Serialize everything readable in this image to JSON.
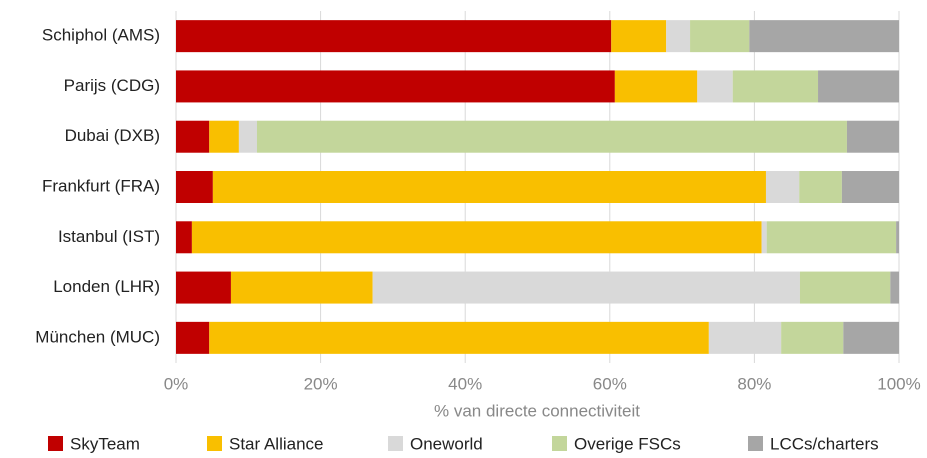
{
  "chart_data": {
    "type": "stacked-bar-horizontal",
    "x_label": "% van directe connectiviteit",
    "categories": [
      "Schiphol (AMS)",
      "Parijs (CDG)",
      "Dubai (DXB)",
      "Frankfurt (FRA)",
      "Istanbul (IST)",
      "Londen (LHR)",
      "München (MUC)"
    ],
    "series": [
      {
        "name": "SkyTeam",
        "color": "#c00000",
        "values": [
          60.2,
          60.7,
          4.6,
          5.1,
          2.2,
          7.6,
          4.6
        ]
      },
      {
        "name": "Star Alliance",
        "color": "#f9bf00",
        "values": [
          7.6,
          11.4,
          4.1,
          76.5,
          78.8,
          19.6,
          69.1
        ]
      },
      {
        "name": "Oneworld",
        "color": "#d9d9d9",
        "values": [
          3.3,
          4.9,
          2.5,
          4.6,
          0.7,
          59.1,
          10.0
        ]
      },
      {
        "name": "Overige FSCs",
        "color": "#c3d69b",
        "values": [
          8.2,
          11.8,
          81.6,
          5.9,
          17.9,
          12.5,
          8.6
        ]
      },
      {
        "name": "LCCs/charters",
        "color": "#a6a6a6",
        "values": [
          20.7,
          11.2,
          7.2,
          7.9,
          0.4,
          1.2,
          7.7
        ]
      }
    ],
    "xlim": [
      0,
      100
    ],
    "xticks": [
      {
        "value": 0,
        "label": "0%"
      },
      {
        "value": 20,
        "label": "20%"
      },
      {
        "value": 40,
        "label": "40%"
      },
      {
        "value": 60,
        "label": "60%"
      },
      {
        "value": 80,
        "label": "80%"
      },
      {
        "value": 100,
        "label": "100%"
      }
    ],
    "grid": true,
    "legend": "bottom"
  }
}
